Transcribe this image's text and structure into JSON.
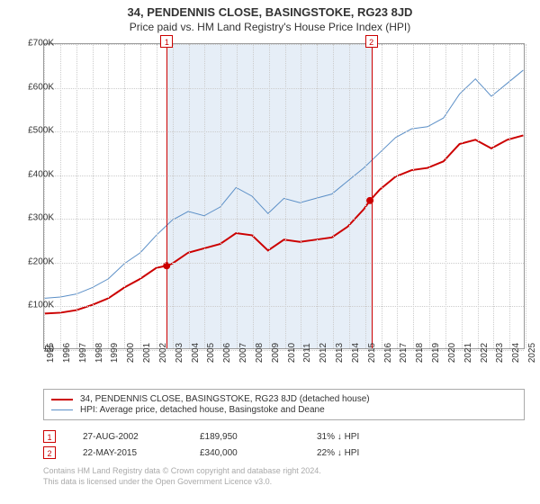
{
  "title_line1": "34, PENDENNIS CLOSE, BASINGSTOKE, RG23 8JD",
  "title_line2": "Price paid vs. HM Land Registry's House Price Index (HPI)",
  "chart": {
    "type": "line",
    "background_color": "#ffffff",
    "grid_color": "#cccccc",
    "shaded_band_color": "#e6eef7",
    "shaded_band": {
      "x_start": 2002.65,
      "x_end": 2015.39
    },
    "xlim": [
      1995,
      2025
    ],
    "ylim": [
      0,
      700000
    ],
    "ytick_step": 100000,
    "ytick_prefix": "£",
    "ytick_labels": [
      "£0",
      "£100K",
      "£200K",
      "£300K",
      "£400K",
      "£500K",
      "£600K",
      "£700K"
    ],
    "xticks": [
      1995,
      1996,
      1997,
      1998,
      1999,
      2000,
      2001,
      2002,
      2003,
      2004,
      2005,
      2006,
      2007,
      2008,
      2009,
      2010,
      2011,
      2012,
      2013,
      2014,
      2015,
      2016,
      2017,
      2018,
      2019,
      2020,
      2021,
      2022,
      2023,
      2024,
      2025
    ],
    "label_fontsize": 10,
    "series": [
      {
        "name": "price_paid",
        "legend_label": "34, PENDENNIS CLOSE, BASINGSTOKE, RG23 8JD (detached house)",
        "color": "#cc0000",
        "line_width": 2,
        "points": [
          [
            1995,
            80000
          ],
          [
            1996,
            82000
          ],
          [
            1997,
            88000
          ],
          [
            1998,
            100000
          ],
          [
            1999,
            115000
          ],
          [
            2000,
            140000
          ],
          [
            2001,
            160000
          ],
          [
            2002,
            185000
          ],
          [
            2002.65,
            189950
          ],
          [
            2003,
            195000
          ],
          [
            2004,
            220000
          ],
          [
            2005,
            230000
          ],
          [
            2006,
            240000
          ],
          [
            2007,
            265000
          ],
          [
            2008,
            260000
          ],
          [
            2009,
            225000
          ],
          [
            2010,
            250000
          ],
          [
            2011,
            245000
          ],
          [
            2012,
            250000
          ],
          [
            2013,
            255000
          ],
          [
            2014,
            280000
          ],
          [
            2015,
            320000
          ],
          [
            2015.39,
            340000
          ],
          [
            2016,
            365000
          ],
          [
            2017,
            395000
          ],
          [
            2018,
            410000
          ],
          [
            2019,
            415000
          ],
          [
            2020,
            430000
          ],
          [
            2021,
            470000
          ],
          [
            2022,
            480000
          ],
          [
            2023,
            460000
          ],
          [
            2024,
            480000
          ],
          [
            2025,
            490000
          ]
        ]
      },
      {
        "name": "hpi",
        "legend_label": "HPI: Average price, detached house, Basingstoke and Deane",
        "color": "#5b8fc7",
        "line_width": 1,
        "points": [
          [
            1995,
            115000
          ],
          [
            1996,
            118000
          ],
          [
            1997,
            125000
          ],
          [
            1998,
            140000
          ],
          [
            1999,
            160000
          ],
          [
            2000,
            195000
          ],
          [
            2001,
            220000
          ],
          [
            2002,
            260000
          ],
          [
            2003,
            295000
          ],
          [
            2004,
            315000
          ],
          [
            2005,
            305000
          ],
          [
            2006,
            325000
          ],
          [
            2007,
            370000
          ],
          [
            2008,
            350000
          ],
          [
            2009,
            310000
          ],
          [
            2010,
            345000
          ],
          [
            2011,
            335000
          ],
          [
            2012,
            345000
          ],
          [
            2013,
            355000
          ],
          [
            2014,
            385000
          ],
          [
            2015,
            415000
          ],
          [
            2016,
            450000
          ],
          [
            2017,
            485000
          ],
          [
            2018,
            505000
          ],
          [
            2019,
            510000
          ],
          [
            2020,
            530000
          ],
          [
            2021,
            585000
          ],
          [
            2022,
            620000
          ],
          [
            2023,
            580000
          ],
          [
            2024,
            610000
          ],
          [
            2025,
            640000
          ]
        ]
      }
    ],
    "event_markers": [
      {
        "num": "1",
        "x": 2002.65,
        "y": 189950
      },
      {
        "num": "2",
        "x": 2015.39,
        "y": 340000
      }
    ],
    "event_marker_color": "#cc0000",
    "event_dot_radius": 4
  },
  "legend": {
    "rows": [
      {
        "color": "#cc0000",
        "width": 2,
        "label_key": "chart.series.0.legend_label"
      },
      {
        "color": "#5b8fc7",
        "width": 1,
        "label_key": "chart.series.1.legend_label"
      }
    ]
  },
  "events_table": [
    {
      "num": "1",
      "date": "27-AUG-2002",
      "price": "£189,950",
      "delta": "31% ↓ HPI"
    },
    {
      "num": "2",
      "date": "22-MAY-2015",
      "price": "£340,000",
      "delta": "22% ↓ HPI"
    }
  ],
  "footer_line1": "Contains HM Land Registry data © Crown copyright and database right 2024.",
  "footer_line2": "This data is licensed under the Open Government Licence v3.0."
}
